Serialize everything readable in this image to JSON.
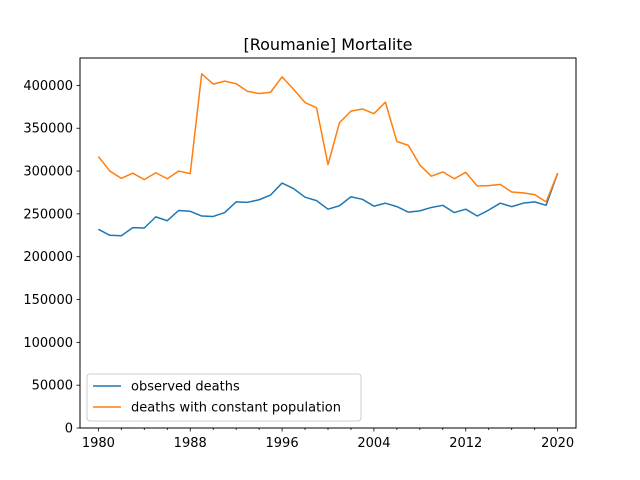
{
  "chart_data": {
    "type": "line",
    "title": "[Roumanie] Mortalite",
    "xlabel": "",
    "ylabel": "",
    "xlim": [
      1978.4,
      2021.6
    ],
    "ylim": [
      0,
      432000
    ],
    "x_ticks": [
      1980,
      1988,
      1996,
      2004,
      2012,
      2020
    ],
    "y_ticks": [
      0,
      50000,
      100000,
      150000,
      200000,
      250000,
      300000,
      350000,
      400000
    ],
    "grid": false,
    "legend_position": "lower-left",
    "x": [
      1980,
      1981,
      1982,
      1983,
      1984,
      1985,
      1986,
      1987,
      1988,
      1989,
      1990,
      1991,
      1992,
      1993,
      1994,
      1995,
      1996,
      1997,
      1998,
      1999,
      2000,
      2001,
      2002,
      2003,
      2004,
      2005,
      2006,
      2007,
      2008,
      2009,
      2010,
      2011,
      2012,
      2013,
      2014,
      2015,
      2016,
      2017,
      2018,
      2019,
      2020
    ],
    "series": [
      {
        "name": "observed deaths",
        "color": "#1f77b4",
        "values": [
          232000,
          225000,
          224500,
          234000,
          233500,
          246500,
          242000,
          254000,
          253000,
          247500,
          247000,
          251500,
          264000,
          263500,
          266500,
          272000,
          286000,
          279500,
          269500,
          265500,
          255500,
          259500,
          270000,
          267000,
          259000,
          262500,
          258500,
          252000,
          253500,
          257500,
          260000,
          251500,
          255500,
          247500,
          254500,
          262500,
          258500,
          262500,
          264000,
          260000,
          297500
        ]
      },
      {
        "name": "deaths with constant population",
        "color": "#ff7f0e",
        "values": [
          317000,
          300000,
          291500,
          297500,
          290000,
          298000,
          291000,
          300000,
          297000,
          413500,
          401500,
          405000,
          402000,
          393000,
          390500,
          392000,
          410000,
          395500,
          380000,
          374000,
          307500,
          356500,
          370000,
          372500,
          367000,
          380500,
          334500,
          330000,
          307000,
          294000,
          299000,
          291000,
          298500,
          282500,
          283000,
          284500,
          275500,
          274500,
          272500,
          264000,
          297500
        ]
      }
    ]
  }
}
